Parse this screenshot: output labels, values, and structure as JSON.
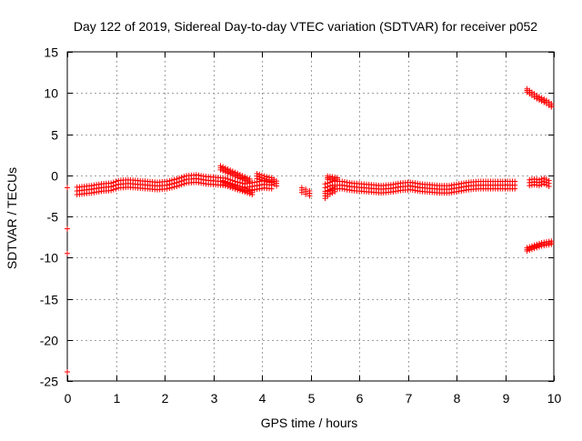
{
  "chart_data": {
    "type": "scatter",
    "title": "Day 122 of 2019, Sidereal Day-to-day VTEC variation (SDTVAR) for receiver p052",
    "xlabel": "GPS time / hours",
    "ylabel": "SDTVAR / TECUs",
    "xlim": [
      0,
      10
    ],
    "ylim": [
      -25,
      15
    ],
    "grid": true,
    "legend": "none",
    "x_ticks": [
      0,
      1,
      2,
      3,
      4,
      5,
      6,
      7,
      8,
      9,
      10
    ],
    "x_tick_labels": [
      "0",
      "1",
      "2",
      "3",
      "4",
      "5",
      "6",
      "7",
      "8",
      "9",
      "10"
    ],
    "y_ticks": [
      -25,
      -20,
      -15,
      -10,
      -5,
      0,
      5,
      10,
      15
    ],
    "y_tick_labels": [
      "-25",
      "-20",
      "-15",
      "-10",
      "-5",
      "0",
      "5",
      "10",
      "15"
    ],
    "marker": "+",
    "series_color": "#ff0000",
    "series": [
      {
        "name": "main-band-1",
        "x": [
          0.2,
          0.35,
          0.5,
          0.7,
          0.9,
          1.05,
          1.25,
          1.45,
          1.65,
          1.85,
          2.05,
          2.25,
          2.45,
          2.65,
          2.85,
          3.05,
          3.25,
          3.45,
          3.65,
          3.85,
          4.05,
          4.2
        ],
        "y": [
          -1.9,
          -1.8,
          -1.7,
          -1.5,
          -1.4,
          -1.1,
          -1.0,
          -1.1,
          -1.2,
          -1.3,
          -1.2,
          -0.9,
          -0.5,
          -0.4,
          -0.6,
          -0.7,
          -0.8,
          -1.2,
          -1.5,
          -1.3,
          -1.1,
          -1.2
        ],
        "spread": 0.45
      },
      {
        "name": "arc-3to4",
        "x": [
          3.15,
          3.3,
          3.45,
          3.6,
          3.75
        ],
        "y": [
          0.9,
          0.5,
          0.1,
          -0.3,
          -0.7
        ],
        "spread": 0.25
      },
      {
        "name": "arc-lower-3to4",
        "x": [
          3.2,
          3.35,
          3.5,
          3.65,
          3.8
        ],
        "y": [
          -0.9,
          -1.2,
          -1.5,
          -1.8,
          -2.1
        ],
        "spread": 0.25
      },
      {
        "name": "piece-4",
        "x": [
          3.9,
          4.0,
          4.1,
          4.2,
          4.3
        ],
        "y": [
          -0.1,
          -0.3,
          -0.5,
          -0.6,
          -1.0
        ],
        "spread": 0.3
      },
      {
        "name": "dot-4.8",
        "x": [
          4.82,
          4.9,
          4.98
        ],
        "y": [
          -1.8,
          -2.0,
          -2.2
        ],
        "spread": 0.3
      },
      {
        "name": "main-band-2",
        "x": [
          5.3,
          5.45,
          5.65,
          5.85,
          6.05,
          6.25,
          6.45,
          6.65,
          6.85,
          7.05,
          7.25,
          7.45,
          7.65,
          7.85,
          8.05,
          8.25,
          8.45,
          8.65,
          8.85,
          9.05,
          9.2
        ],
        "y": [
          -1.5,
          -1.2,
          -1.2,
          -1.4,
          -1.5,
          -1.6,
          -1.7,
          -1.6,
          -1.4,
          -1.3,
          -1.5,
          -1.6,
          -1.7,
          -1.7,
          -1.5,
          -1.3,
          -1.2,
          -1.2,
          -1.2,
          -1.2,
          -1.2
        ],
        "spread": 0.45
      },
      {
        "name": "tail-5.3",
        "x": [
          5.3,
          5.4,
          5.5
        ],
        "y": [
          -2.5,
          -2.0,
          -1.7
        ],
        "spread": 0.3
      },
      {
        "name": "tail-5.5",
        "x": [
          5.35,
          5.45,
          5.55
        ],
        "y": [
          -0.3,
          -0.4,
          -0.5
        ],
        "spread": 0.2
      },
      {
        "name": "right-high",
        "x": [
          9.45,
          9.55,
          9.65,
          9.75,
          9.85,
          9.95
        ],
        "y": [
          10.3,
          9.9,
          9.5,
          9.2,
          8.9,
          8.5
        ],
        "spread": 0.2
      },
      {
        "name": "right-mid",
        "x": [
          9.5,
          9.6,
          9.7,
          9.8,
          9.9
        ],
        "y": [
          -0.9,
          -0.8,
          -0.9,
          -0.7,
          -1.0
        ],
        "spread": 0.35
      },
      {
        "name": "right-low",
        "x": [
          9.45,
          9.55,
          9.65,
          9.75,
          9.85,
          9.95
        ],
        "y": [
          -9.0,
          -8.8,
          -8.6,
          -8.4,
          -8.3,
          -8.2
        ],
        "spread": 0.2
      },
      {
        "name": "edge-markers",
        "x": [
          0.0,
          0.0,
          0.0,
          0.0
        ],
        "y": [
          -1.5,
          -6.5,
          -9.5,
          -23.9
        ],
        "spread": 0.0
      }
    ]
  }
}
